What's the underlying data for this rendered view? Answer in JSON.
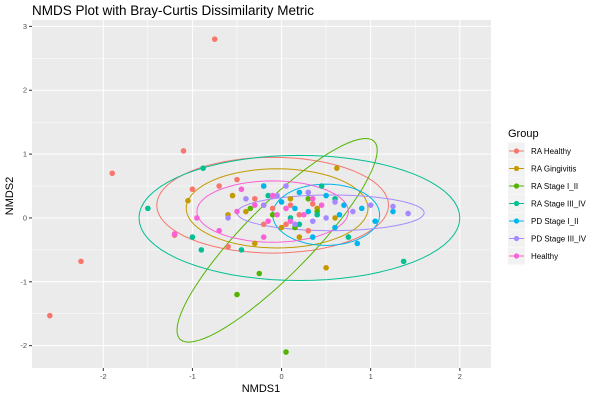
{
  "chart_data": {
    "type": "scatter",
    "title": "NMDS Plot with Bray-Curtis Dissimilarity Metric",
    "xlabel": "NMDS1",
    "ylabel": "NMDS2",
    "xlim": [
      -2.8,
      2.35
    ],
    "ylim": [
      -2.35,
      3.1
    ],
    "xticks": [
      -2,
      -1,
      0,
      1,
      2
    ],
    "yticks": [
      -2,
      -1,
      0,
      1,
      2,
      3
    ],
    "grid": true,
    "background": "#ebebeb",
    "legend": {
      "title": "Group",
      "position": "right",
      "entries": [
        "RA Healthy",
        "RA Gingivitis",
        "RA Stage I_II",
        "RA Stage III_IV",
        "PD Stage I_II",
        "PD Stage III_IV",
        "Healthy"
      ]
    },
    "series": [
      {
        "name": "RA Healthy",
        "color": "#F8766D",
        "points": [
          [
            -0.75,
            2.8
          ],
          [
            -1.1,
            1.05
          ],
          [
            -1.9,
            0.7
          ],
          [
            -2.25,
            -0.68
          ],
          [
            -2.6,
            -1.53
          ],
          [
            -1.2,
            -0.27
          ],
          [
            -1.0,
            0.45
          ],
          [
            -0.7,
            0.5
          ],
          [
            -0.5,
            0.6
          ],
          [
            -0.3,
            0.3
          ],
          [
            0.1,
            0.2
          ],
          [
            0.2,
            0.05
          ],
          [
            -0.6,
            -0.45
          ],
          [
            0.05,
            -0.1
          ],
          [
            -0.1,
            0.15
          ],
          [
            0.35,
            0.22
          ],
          [
            -0.2,
            -0.1
          ],
          [
            0.3,
            -0.2
          ]
        ],
        "ellipse": {
          "center": [
            -0.1,
            0.2
          ],
          "rx": 1.3,
          "ry": 0.75,
          "angle": 0
        }
      },
      {
        "name": "RA Gingivitis",
        "color": "#C49A00",
        "points": [
          [
            0.62,
            0.78
          ],
          [
            -1.05,
            0.27
          ],
          [
            -0.55,
            0.35
          ],
          [
            -0.2,
            0.5
          ],
          [
            0.1,
            0.3
          ],
          [
            0.4,
            0.15
          ],
          [
            0.5,
            -0.78
          ],
          [
            -0.3,
            -0.4
          ],
          [
            0.6,
            0.0
          ],
          [
            -0.4,
            0.1
          ],
          [
            0.2,
            -0.3
          ],
          [
            -0.6,
            0.05
          ],
          [
            -0.2,
            0.2
          ],
          [
            0.0,
            -0.15
          ]
        ],
        "ellipse": {
          "center": [
            -0.05,
            0.15
          ],
          "rx": 1.02,
          "ry": 0.62,
          "angle": 0
        }
      },
      {
        "name": "RA Stage I_II",
        "color": "#53B400",
        "points": [
          [
            0.05,
            -2.1
          ],
          [
            -0.5,
            -1.2
          ],
          [
            -0.25,
            -0.87
          ],
          [
            0.15,
            -0.15
          ],
          [
            0.4,
            0.1
          ],
          [
            -0.1,
            0.05
          ],
          [
            0.3,
            0.3
          ],
          [
            -0.35,
            0.15
          ]
        ],
        "ellipse": {
          "center": [
            -0.05,
            -0.35
          ],
          "rx": 1.9,
          "ry": 0.44,
          "angle": 56
        }
      },
      {
        "name": "RA Stage III_IV",
        "color": "#00C094",
        "points": [
          [
            -0.88,
            0.78
          ],
          [
            -1.5,
            0.15
          ],
          [
            -1.0,
            -0.3
          ],
          [
            -0.9,
            -0.5
          ],
          [
            -0.45,
            -0.5
          ],
          [
            1.37,
            -0.68
          ],
          [
            0.45,
            0.5
          ],
          [
            0.2,
            -0.1
          ],
          [
            0.6,
            0.3
          ],
          [
            0.75,
            -0.3
          ],
          [
            0.4,
            0.05
          ],
          [
            0.1,
            0.0
          ],
          [
            -0.15,
            0.35
          ]
        ],
        "ellipse": {
          "center": [
            0.2,
            0.0
          ],
          "rx": 1.8,
          "ry": 0.98,
          "angle": 0
        }
      },
      {
        "name": "PD Stage I_II",
        "color": "#00B6EB",
        "points": [
          [
            1.25,
            0.1
          ],
          [
            0.9,
            0.15
          ],
          [
            0.7,
            0.2
          ],
          [
            0.5,
            0.35
          ],
          [
            0.3,
            0.1
          ],
          [
            0.2,
            0.4
          ],
          [
            0.0,
            0.25
          ],
          [
            -0.2,
            0.5
          ],
          [
            0.6,
            -0.15
          ],
          [
            0.85,
            -0.4
          ],
          [
            0.35,
            -0.3
          ],
          [
            1.05,
            -0.05
          ],
          [
            0.65,
            0.05
          ],
          [
            0.15,
            0.15
          ]
        ],
        "ellipse": {
          "center": [
            0.5,
            0.05
          ],
          "rx": 0.6,
          "ry": 0.48,
          "angle": 0
        }
      },
      {
        "name": "PD Stage III_IV",
        "color": "#A58AFF",
        "points": [
          [
            1.42,
            0.07
          ],
          [
            1.25,
            0.18
          ],
          [
            1.0,
            0.2
          ],
          [
            0.8,
            0.1
          ],
          [
            0.5,
            0.0
          ],
          [
            0.3,
            0.4
          ],
          [
            0.05,
            0.5
          ],
          [
            -0.2,
            0.2
          ],
          [
            -0.6,
            0.0
          ],
          [
            -0.4,
            0.3
          ],
          [
            0.15,
            -0.1
          ],
          [
            0.6,
            0.25
          ],
          [
            -0.05,
            0.35
          ],
          [
            0.35,
            -0.05
          ]
        ],
        "ellipse": {
          "center": [
            0.55,
            0.08
          ],
          "rx": 1.05,
          "ry": 0.28,
          "angle": 0
        }
      },
      {
        "name": "Healthy",
        "color": "#FB61D7",
        "points": [
          [
            -1.2,
            -0.25
          ],
          [
            -0.95,
            0.0
          ],
          [
            -0.7,
            -0.2
          ],
          [
            -0.5,
            0.1
          ],
          [
            -0.3,
            0.2
          ],
          [
            -0.1,
            0.35
          ],
          [
            0.1,
            -0.05
          ],
          [
            0.25,
            0.05
          ],
          [
            -0.2,
            -0.3
          ],
          [
            -0.05,
            0.05
          ],
          [
            0.35,
            0.3
          ],
          [
            -0.45,
            0.45
          ],
          [
            0.05,
            0.15
          ],
          [
            -0.15,
            -0.05
          ],
          [
            0.45,
            0.2
          ]
        ],
        "ellipse": {
          "center": [
            -0.1,
            0.1
          ],
          "rx": 0.85,
          "ry": 0.48,
          "angle": 0
        }
      }
    ]
  }
}
